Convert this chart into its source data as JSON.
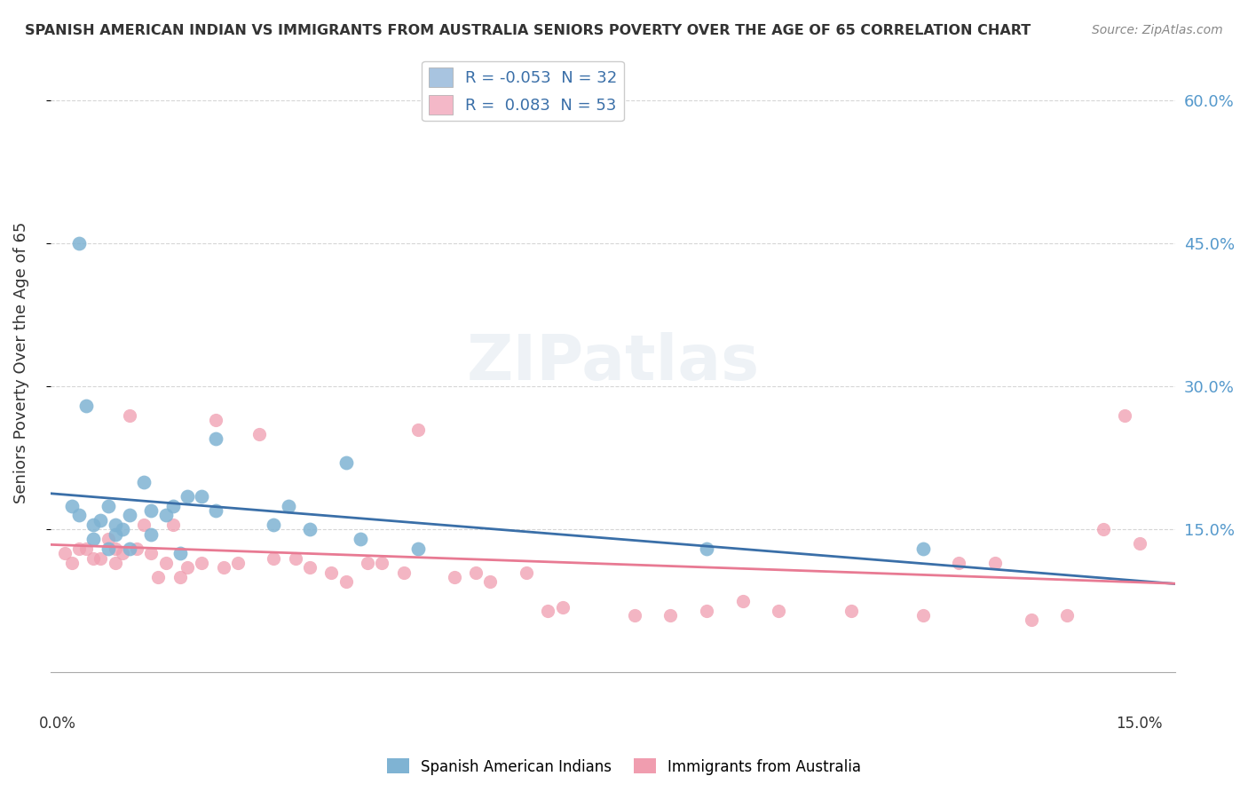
{
  "title": "SPANISH AMERICAN INDIAN VS IMMIGRANTS FROM AUSTRALIA SENIORS POVERTY OVER THE AGE OF 65 CORRELATION CHART",
  "source": "Source: ZipAtlas.com",
  "ylabel": "Seniors Poverty Over the Age of 65",
  "ylim": [
    0,
    0.65
  ],
  "xlim": [
    -0.001,
    0.155
  ],
  "yticks": [
    0.15,
    0.3,
    0.45,
    0.6
  ],
  "ytick_labels": [
    "15.0%",
    "30.0%",
    "45.0%",
    "60.0%"
  ],
  "legend1_label": "R = -0.053  N = 32",
  "legend2_label": "R =  0.083  N = 53",
  "legend1_color": "#a8c4e0",
  "legend2_color": "#f4b8c8",
  "scatter1_color": "#7fb3d3",
  "scatter2_color": "#f09daf",
  "line1_color": "#3a6fa8",
  "line2_color": "#e87a93",
  "background_color": "#ffffff",
  "blue_x": [
    0.002,
    0.003,
    0.003,
    0.004,
    0.005,
    0.005,
    0.006,
    0.007,
    0.007,
    0.008,
    0.008,
    0.009,
    0.01,
    0.01,
    0.012,
    0.013,
    0.013,
    0.015,
    0.016,
    0.017,
    0.018,
    0.02,
    0.022,
    0.022,
    0.03,
    0.032,
    0.035,
    0.04,
    0.042,
    0.05,
    0.09,
    0.12
  ],
  "blue_y": [
    0.175,
    0.45,
    0.165,
    0.28,
    0.14,
    0.155,
    0.16,
    0.175,
    0.13,
    0.155,
    0.145,
    0.15,
    0.165,
    0.13,
    0.2,
    0.17,
    0.145,
    0.165,
    0.175,
    0.125,
    0.185,
    0.185,
    0.17,
    0.245,
    0.155,
    0.175,
    0.15,
    0.22,
    0.14,
    0.13,
    0.13,
    0.13
  ],
  "pink_x": [
    0.001,
    0.002,
    0.003,
    0.004,
    0.005,
    0.006,
    0.007,
    0.008,
    0.008,
    0.009,
    0.01,
    0.011,
    0.012,
    0.013,
    0.014,
    0.015,
    0.016,
    0.017,
    0.018,
    0.02,
    0.022,
    0.023,
    0.025,
    0.028,
    0.03,
    0.033,
    0.035,
    0.038,
    0.04,
    0.043,
    0.045,
    0.048,
    0.05,
    0.055,
    0.058,
    0.06,
    0.065,
    0.068,
    0.07,
    0.08,
    0.085,
    0.09,
    0.095,
    0.1,
    0.11,
    0.12,
    0.125,
    0.13,
    0.135,
    0.14,
    0.145,
    0.148,
    0.15
  ],
  "pink_y": [
    0.125,
    0.115,
    0.13,
    0.13,
    0.12,
    0.12,
    0.14,
    0.13,
    0.115,
    0.125,
    0.27,
    0.13,
    0.155,
    0.125,
    0.1,
    0.115,
    0.155,
    0.1,
    0.11,
    0.115,
    0.265,
    0.11,
    0.115,
    0.25,
    0.12,
    0.12,
    0.11,
    0.105,
    0.095,
    0.115,
    0.115,
    0.105,
    0.255,
    0.1,
    0.105,
    0.095,
    0.105,
    0.065,
    0.068,
    0.06,
    0.06,
    0.065,
    0.075,
    0.065,
    0.065,
    0.06,
    0.115,
    0.115,
    0.055,
    0.06,
    0.15,
    0.27,
    0.135
  ]
}
